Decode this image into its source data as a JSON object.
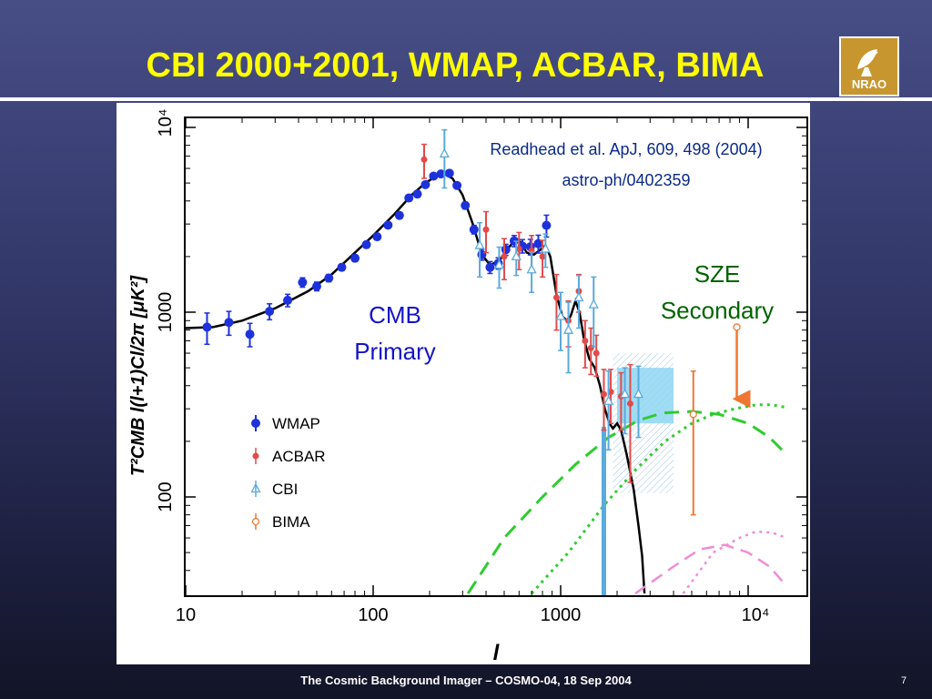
{
  "slide": {
    "title": "CBI 2000+2001, WMAP, ACBAR, BIMA",
    "footer": "The Cosmic Background Imager – COSMO-04, 18 Sep 2004",
    "page_number": "7",
    "logo_text": "NRAO"
  },
  "chart_data": {
    "type": "scatter",
    "xlabel": "l",
    "ylabel": "T²CMB l(l+1)Cl/2π [μK²]",
    "xscale": "log",
    "yscale": "log",
    "xlim": [
      10,
      16000
    ],
    "ylim": [
      30,
      10000
    ],
    "x_ticks": [
      "10",
      "100",
      "1000",
      "10⁴"
    ],
    "y_ticks": [
      "100",
      "1000",
      "10⁴"
    ],
    "legend_position": "left-center",
    "citation": [
      "Readhead et al. ApJ, 609, 498 (2004)",
      "astro-ph/0402359"
    ],
    "annotations": [
      {
        "text": [
          "CMB",
          "Primary"
        ],
        "color": "#1414c8"
      },
      {
        "text": [
          "SZE",
          "Secondary"
        ],
        "color": "#006400"
      }
    ],
    "series": [
      {
        "name": "WMAP",
        "color": "#1e32dc",
        "marker": "filled-circle",
        "points": [
          [
            13,
            830,
            160
          ],
          [
            17,
            880,
            130
          ],
          [
            22,
            760,
            110
          ],
          [
            28,
            1010,
            100
          ],
          [
            35,
            1160,
            90
          ],
          [
            42,
            1450,
            85
          ],
          [
            50,
            1380,
            75
          ],
          [
            58,
            1530,
            70
          ],
          [
            68,
            1750,
            70
          ],
          [
            80,
            1960,
            80
          ],
          [
            92,
            2320,
            90
          ],
          [
            105,
            2560,
            100
          ],
          [
            120,
            2960,
            110
          ],
          [
            138,
            3340,
            120
          ],
          [
            155,
            4150,
            140
          ],
          [
            172,
            4360,
            150
          ],
          [
            190,
            4900,
            160
          ],
          [
            210,
            5450,
            170
          ],
          [
            230,
            5600,
            180
          ],
          [
            255,
            5650,
            180
          ],
          [
            280,
            4850,
            170
          ],
          [
            310,
            3780,
            160
          ],
          [
            345,
            2800,
            150
          ],
          [
            380,
            2050,
            140
          ],
          [
            420,
            1750,
            130
          ],
          [
            465,
            1840,
            130
          ],
          [
            510,
            2180,
            150
          ],
          [
            565,
            2430,
            170
          ],
          [
            625,
            2280,
            190
          ],
          [
            690,
            2260,
            220
          ],
          [
            760,
            2350,
            260
          ],
          [
            840,
            2950,
            400
          ]
        ]
      },
      {
        "name": "ACBAR",
        "color": "#e34a4a",
        "marker": "filled-circle",
        "points": [
          [
            187,
            6700,
            1400
          ],
          [
            400,
            2800,
            700
          ],
          [
            500,
            2000,
            500
          ],
          [
            600,
            2200,
            500
          ],
          [
            700,
            2150,
            450
          ],
          [
            800,
            2000,
            450
          ],
          [
            950,
            1200,
            400
          ],
          [
            1100,
            900,
            250
          ],
          [
            1250,
            1300,
            300
          ],
          [
            1350,
            700,
            200
          ],
          [
            1450,
            640,
            180
          ],
          [
            1550,
            600,
            150
          ],
          [
            1700,
            360,
            130
          ],
          [
            1850,
            370,
            120
          ],
          [
            2100,
            350,
            120
          ],
          [
            2350,
            320,
            200
          ]
        ]
      },
      {
        "name": "CBI",
        "color": "#5aaadd",
        "marker": "open-triangle",
        "points": [
          [
            240,
            7200,
            2500
          ],
          [
            370,
            2300,
            750
          ],
          [
            470,
            1800,
            450
          ],
          [
            580,
            2000,
            420
          ],
          [
            700,
            1700,
            420
          ],
          [
            830,
            2200,
            450
          ],
          [
            1000,
            950,
            330
          ],
          [
            1100,
            800,
            330
          ],
          [
            1250,
            1200,
            380
          ],
          [
            1500,
            1100,
            450
          ],
          [
            1800,
            330,
            150
          ],
          [
            2200,
            360,
            140
          ],
          [
            2600,
            360,
            150
          ]
        ]
      },
      {
        "name": "BIMA",
        "color": "#ee7733",
        "marker": "open-circle",
        "points": [
          [
            5100,
            280,
            200
          ]
        ],
        "upper_limit": {
          "x": 8700,
          "y": 830,
          "to": 310
        }
      }
    ],
    "cbi_band": {
      "l": [
        2000,
        4000
      ],
      "y": [
        250,
        500
      ],
      "color": "#8fd6f2"
    },
    "hatched_box": {
      "l": [
        1900,
        4000
      ],
      "y": [
        105,
        600
      ]
    }
  }
}
